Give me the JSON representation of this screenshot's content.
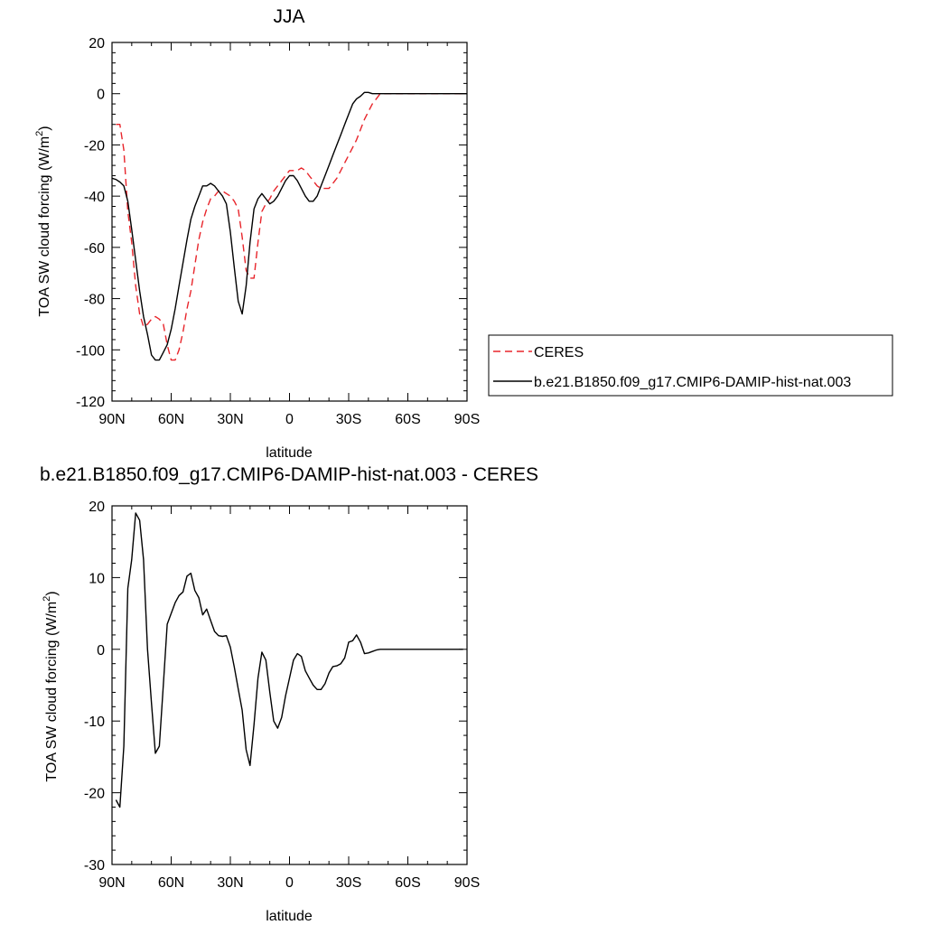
{
  "chart_data": [
    {
      "type": "line",
      "title": "JJA",
      "xlabel": "latitude",
      "ylabel": "TOA SW cloud forcing (W/m",
      "ylabel_sup": "2",
      "ylabel_close": ")",
      "xlim": [
        90,
        -90
      ],
      "ylim": [
        -120,
        20
      ],
      "x_ticks": [
        {
          "value": 90,
          "label": "90N"
        },
        {
          "value": 60,
          "label": "60N"
        },
        {
          "value": 30,
          "label": "30N"
        },
        {
          "value": 0,
          "label": "0"
        },
        {
          "value": -30,
          "label": "30S"
        },
        {
          "value": -60,
          "label": "60S"
        },
        {
          "value": -90,
          "label": "90S"
        }
      ],
      "y_ticks": [
        20,
        0,
        -20,
        -40,
        -60,
        -80,
        -100,
        -120
      ],
      "legend": "right, outside plot",
      "series": [
        {
          "name": "CERES",
          "color": "#e8252b",
          "dash": "dashed",
          "x": [
            88,
            86,
            84,
            82,
            80,
            78,
            76,
            74,
            72,
            70,
            68,
            66,
            64,
            62,
            60,
            58,
            56,
            54,
            52,
            50,
            48,
            46,
            44,
            42,
            40,
            38,
            36,
            34,
            32,
            30,
            28,
            26,
            24,
            22,
            20,
            18,
            16,
            14,
            12,
            10,
            8,
            6,
            4,
            2,
            0,
            -2,
            -4,
            -6,
            -8,
            -10,
            -12,
            -14,
            -16,
            -18,
            -20,
            -22,
            -24,
            -26,
            -28,
            -30,
            -32,
            -34,
            -36,
            -38,
            -40,
            -42,
            -44,
            -46,
            -48,
            -50,
            -52,
            -54,
            -56,
            -58,
            -60,
            -62,
            -64,
            -66,
            -68,
            -70,
            -72,
            -74,
            -76,
            -78,
            -80,
            -82,
            -84,
            -86,
            -88
          ],
          "values": [
            -12,
            -12,
            -22,
            -46,
            -58,
            -75,
            -86,
            -91,
            -90,
            -88,
            -87,
            -88,
            -90,
            -98,
            -104,
            -104,
            -100,
            -93,
            -84,
            -77,
            -67,
            -57,
            -50,
            -45,
            -41,
            -40,
            -38,
            -38,
            -39,
            -40,
            -42,
            -45,
            -56,
            -69,
            -72,
            -72,
            -58,
            -46,
            -43,
            -41,
            -38,
            -36,
            -34,
            -32,
            -30,
            -30,
            -30,
            -29,
            -30,
            -32,
            -34,
            -36,
            -37,
            -37,
            -37,
            -35,
            -33,
            -30,
            -27,
            -24,
            -21,
            -18,
            -14,
            -10,
            -7,
            -4,
            -2,
            0,
            0,
            0,
            0,
            0,
            0,
            0,
            0,
            0,
            0,
            0,
            0,
            0,
            0,
            0,
            0,
            0,
            0,
            0,
            0,
            0,
            0
          ]
        },
        {
          "name": "b.e21.B1850.f09_g17.CMIP6-DAMIP-hist-nat.003",
          "color": "#000000",
          "dash": "solid",
          "x": [
            90,
            88,
            86,
            84,
            82,
            80,
            78,
            76,
            74,
            72,
            70,
            68,
            66,
            64,
            62,
            60,
            58,
            56,
            54,
            52,
            50,
            48,
            46,
            44,
            42,
            40,
            38,
            36,
            34,
            32,
            30,
            28,
            26,
            24,
            22,
            20,
            18,
            16,
            14,
            12,
            10,
            8,
            6,
            4,
            2,
            0,
            -2,
            -4,
            -6,
            -8,
            -10,
            -12,
            -14,
            -16,
            -18,
            -20,
            -22,
            -24,
            -26,
            -28,
            -30,
            -32,
            -34,
            -36,
            -38,
            -40,
            -42,
            -44,
            -46,
            -48,
            -50,
            -52,
            -54,
            -56,
            -58,
            -60,
            -62,
            -64,
            -66,
            -68,
            -70,
            -72,
            -74,
            -76,
            -78,
            -80,
            -82,
            -84,
            -86,
            -88,
            -90
          ],
          "values": [
            -33,
            -33.5,
            -34.5,
            -36,
            -42,
            -53,
            -65,
            -77,
            -87,
            -94,
            -102,
            -104,
            -104,
            -101,
            -98,
            -92,
            -84,
            -75,
            -66,
            -57,
            -49,
            -44,
            -40,
            -36,
            -36,
            -35,
            -36,
            -38,
            -40,
            -43,
            -54,
            -68,
            -81,
            -86,
            -75,
            -58,
            -45,
            -41,
            -39,
            -41,
            -43,
            -42,
            -40,
            -37,
            -34,
            -32,
            -32,
            -34,
            -37,
            -40,
            -42,
            -42,
            -40,
            -36,
            -32,
            -28,
            -24,
            -20,
            -16,
            -12,
            -8,
            -4,
            -2,
            -1,
            0.5,
            0.5,
            0,
            0,
            0,
            0,
            0,
            0,
            0,
            0,
            0,
            0,
            0,
            0,
            0,
            0,
            0,
            0,
            0,
            0,
            0,
            0,
            0,
            0,
            0,
            0,
            0
          ]
        }
      ]
    },
    {
      "type": "line",
      "title": "b.e21.B1850.f09_g17.CMIP6-DAMIP-hist-nat.003 - CERES",
      "xlabel": "latitude",
      "ylabel": "TOA SW cloud forcing (W/m",
      "ylabel_sup": "2",
      "ylabel_close": ")",
      "xlim": [
        90,
        -90
      ],
      "ylim": [
        -30,
        20
      ],
      "x_ticks": [
        {
          "value": 90,
          "label": "90N"
        },
        {
          "value": 60,
          "label": "60N"
        },
        {
          "value": 30,
          "label": "30N"
        },
        {
          "value": 0,
          "label": "0"
        },
        {
          "value": -30,
          "label": "30S"
        },
        {
          "value": -60,
          "label": "60S"
        },
        {
          "value": -90,
          "label": "90S"
        }
      ],
      "y_ticks": [
        20,
        10,
        0,
        -10,
        -20,
        -30
      ],
      "legend": "none",
      "series": [
        {
          "name": "",
          "color": "#000000",
          "dash": "solid",
          "x": [
            88,
            86,
            84,
            82,
            80,
            78,
            76,
            74,
            72,
            70,
            68,
            66,
            64,
            62,
            60,
            58,
            56,
            54,
            52,
            50,
            48,
            46,
            44,
            42,
            40,
            38,
            36,
            34,
            32,
            30,
            28,
            26,
            24,
            22,
            20,
            18,
            16,
            14,
            12,
            10,
            8,
            6,
            4,
            2,
            0,
            -2,
            -4,
            -6,
            -8,
            -10,
            -12,
            -14,
            -16,
            -18,
            -20,
            -22,
            -24,
            -26,
            -28,
            -30,
            -32,
            -34,
            -36,
            -38,
            -40,
            -42,
            -44,
            -46,
            -48,
            -50,
            -52,
            -54,
            -56,
            -58,
            -60,
            -62,
            -64,
            -66,
            -68,
            -70,
            -72,
            -74,
            -76,
            -78,
            -80,
            -82,
            -84,
            -86,
            -88
          ],
          "values": [
            -21,
            -22,
            -13.5,
            8.5,
            12.5,
            19,
            18,
            12.5,
            0,
            -7.5,
            -14.5,
            -13.5,
            -5,
            3.5,
            5,
            6.5,
            7.5,
            8,
            10.2,
            10.6,
            8.2,
            7.2,
            4.8,
            5.6,
            4,
            2.5,
            1.9,
            1.8,
            1.9,
            0.3,
            -2.5,
            -5.5,
            -8.5,
            -14,
            -16.2,
            -10.5,
            -4,
            -0.4,
            -1.5,
            -6,
            -10,
            -11,
            -9.5,
            -6.5,
            -4,
            -1.5,
            -0.6,
            -1,
            -3,
            -4,
            -5,
            -5.6,
            -5.6,
            -4.8,
            -3.3,
            -2.4,
            -2.3,
            -2,
            -1.2,
            1,
            1.2,
            2,
            1,
            -0.6,
            -0.5,
            -0.3,
            -0.1,
            0,
            0,
            0,
            0,
            0,
            0,
            0,
            0,
            0,
            0,
            0,
            0,
            0,
            0,
            0,
            0,
            0,
            0,
            0,
            0,
            0,
            0
          ]
        }
      ]
    }
  ]
}
